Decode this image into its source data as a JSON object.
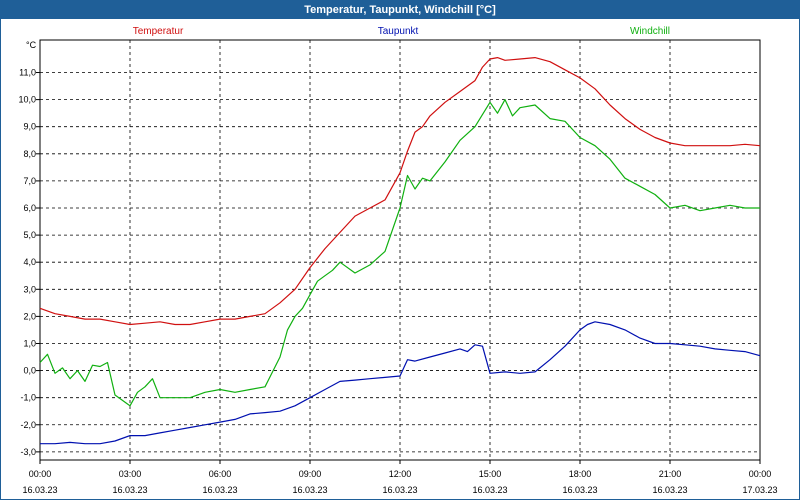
{
  "window": {
    "title": "Temperatur, Taupunkt, Windchill [°C]"
  },
  "chart_data": {
    "type": "line",
    "title": "Temperatur, Taupunkt, Windchill [°C]",
    "ylabel": "°C",
    "ylim": [
      -3.3,
      12.2
    ],
    "yticks": [
      "-3,0",
      "-2,0",
      "-1,0",
      "0,0",
      "1,0",
      "2,0",
      "3,0",
      "4,0",
      "5,0",
      "6,0",
      "7,0",
      "8,0",
      "9,0",
      "10,0",
      "11,0"
    ],
    "xlim": [
      0,
      24
    ],
    "xticks": [
      {
        "time": "00:00",
        "date": "16.03.23"
      },
      {
        "time": "03:00",
        "date": "16.03.23"
      },
      {
        "time": "06:00",
        "date": "16.03.23"
      },
      {
        "time": "09:00",
        "date": "16.03.23"
      },
      {
        "time": "12:00",
        "date": "16.03.23"
      },
      {
        "time": "15:00",
        "date": "16.03.23"
      },
      {
        "time": "18:00",
        "date": "16.03.23"
      },
      {
        "time": "21:00",
        "date": "16.03.23"
      },
      {
        "time": "00:00",
        "date": "17.03.23"
      }
    ],
    "grid": true,
    "legend": "top",
    "series": [
      {
        "name": "Temperatur",
        "color": "#d01010",
        "x": [
          0,
          0.5,
          1,
          1.5,
          2,
          2.5,
          3,
          3.5,
          4,
          4.5,
          5,
          5.5,
          6,
          6.5,
          7,
          7.5,
          8,
          8.5,
          9,
          9.5,
          10,
          10.5,
          11,
          11.5,
          12,
          12.25,
          12.5,
          12.75,
          13,
          13.5,
          14,
          14.5,
          14.75,
          15,
          15.25,
          15.5,
          16,
          16.5,
          17,
          17.5,
          18,
          18.5,
          19,
          19.5,
          20,
          20.5,
          21,
          21.5,
          22,
          22.5,
          23,
          23.5,
          24
        ],
        "values": [
          2.3,
          2.1,
          2.0,
          1.9,
          1.9,
          1.8,
          1.7,
          1.75,
          1.8,
          1.7,
          1.7,
          1.8,
          1.9,
          1.9,
          2.0,
          2.1,
          2.5,
          3.0,
          3.8,
          4.5,
          5.1,
          5.7,
          6.0,
          6.3,
          7.3,
          8.1,
          8.8,
          9.0,
          9.4,
          9.9,
          10.3,
          10.7,
          11.2,
          11.5,
          11.55,
          11.45,
          11.5,
          11.55,
          11.4,
          11.1,
          10.8,
          10.4,
          9.8,
          9.3,
          8.9,
          8.6,
          8.4,
          8.3,
          8.3,
          8.3,
          8.3,
          8.35,
          8.3
        ]
      },
      {
        "name": "Taupunkt",
        "color": "#0010b0",
        "x": [
          0,
          0.5,
          1,
          1.5,
          2,
          2.5,
          3,
          3.5,
          4,
          4.5,
          5,
          5.5,
          6,
          6.5,
          7,
          7.5,
          8,
          8.5,
          9,
          9.5,
          10,
          10.5,
          11,
          11.5,
          12,
          12.25,
          12.5,
          13,
          13.5,
          14,
          14.25,
          14.5,
          14.75,
          15,
          15.5,
          16,
          16.5,
          17,
          17.5,
          18,
          18.25,
          18.5,
          19,
          19.5,
          20,
          20.5,
          21,
          21.5,
          22,
          22.5,
          23,
          23.5,
          24
        ],
        "values": [
          -2.7,
          -2.7,
          -2.65,
          -2.7,
          -2.7,
          -2.6,
          -2.4,
          -2.4,
          -2.3,
          -2.2,
          -2.1,
          -2.0,
          -1.9,
          -1.8,
          -1.6,
          -1.55,
          -1.5,
          -1.3,
          -1.0,
          -0.7,
          -0.4,
          -0.35,
          -0.3,
          -0.25,
          -0.2,
          0.4,
          0.35,
          0.5,
          0.65,
          0.8,
          0.7,
          0.95,
          0.9,
          -0.1,
          -0.05,
          -0.1,
          -0.05,
          0.4,
          0.9,
          1.5,
          1.7,
          1.8,
          1.7,
          1.5,
          1.2,
          1.0,
          1.0,
          0.95,
          0.9,
          0.8,
          0.75,
          0.7,
          0.55
        ]
      },
      {
        "name": "Windchill",
        "color": "#10b010",
        "x": [
          0,
          0.25,
          0.5,
          0.75,
          1,
          1.25,
          1.5,
          1.75,
          2,
          2.25,
          2.5,
          2.75,
          3,
          3.25,
          3.5,
          3.75,
          4,
          4.5,
          5,
          5.5,
          6,
          6.5,
          7,
          7.5,
          8,
          8.25,
          8.5,
          8.75,
          9,
          9.25,
          9.5,
          9.75,
          10,
          10.5,
          11,
          11.5,
          12,
          12.25,
          12.5,
          12.75,
          13,
          13.5,
          14,
          14.5,
          15,
          15.25,
          15.5,
          15.75,
          16,
          16.5,
          17,
          17.5,
          18,
          18.5,
          19,
          19.5,
          20,
          20.5,
          21,
          21.5,
          22,
          22.5,
          23,
          23.5,
          24
        ],
        "values": [
          0.3,
          0.6,
          -0.1,
          0.1,
          -0.3,
          0.0,
          -0.4,
          0.2,
          0.15,
          0.3,
          -0.9,
          -1.1,
          -1.3,
          -0.8,
          -0.6,
          -0.3,
          -1.0,
          -1.0,
          -1.0,
          -0.8,
          -0.7,
          -0.8,
          -0.7,
          -0.6,
          0.5,
          1.5,
          2.0,
          2.3,
          2.8,
          3.3,
          3.5,
          3.7,
          4.0,
          3.6,
          3.9,
          4.4,
          6.0,
          7.2,
          6.7,
          7.1,
          7.0,
          7.7,
          8.5,
          9.0,
          9.9,
          9.5,
          10.0,
          9.4,
          9.7,
          9.8,
          9.3,
          9.2,
          8.6,
          8.3,
          7.8,
          7.1,
          6.8,
          6.5,
          6.0,
          6.1,
          5.9,
          6.0,
          6.1,
          6.0,
          6.0
        ]
      }
    ]
  }
}
